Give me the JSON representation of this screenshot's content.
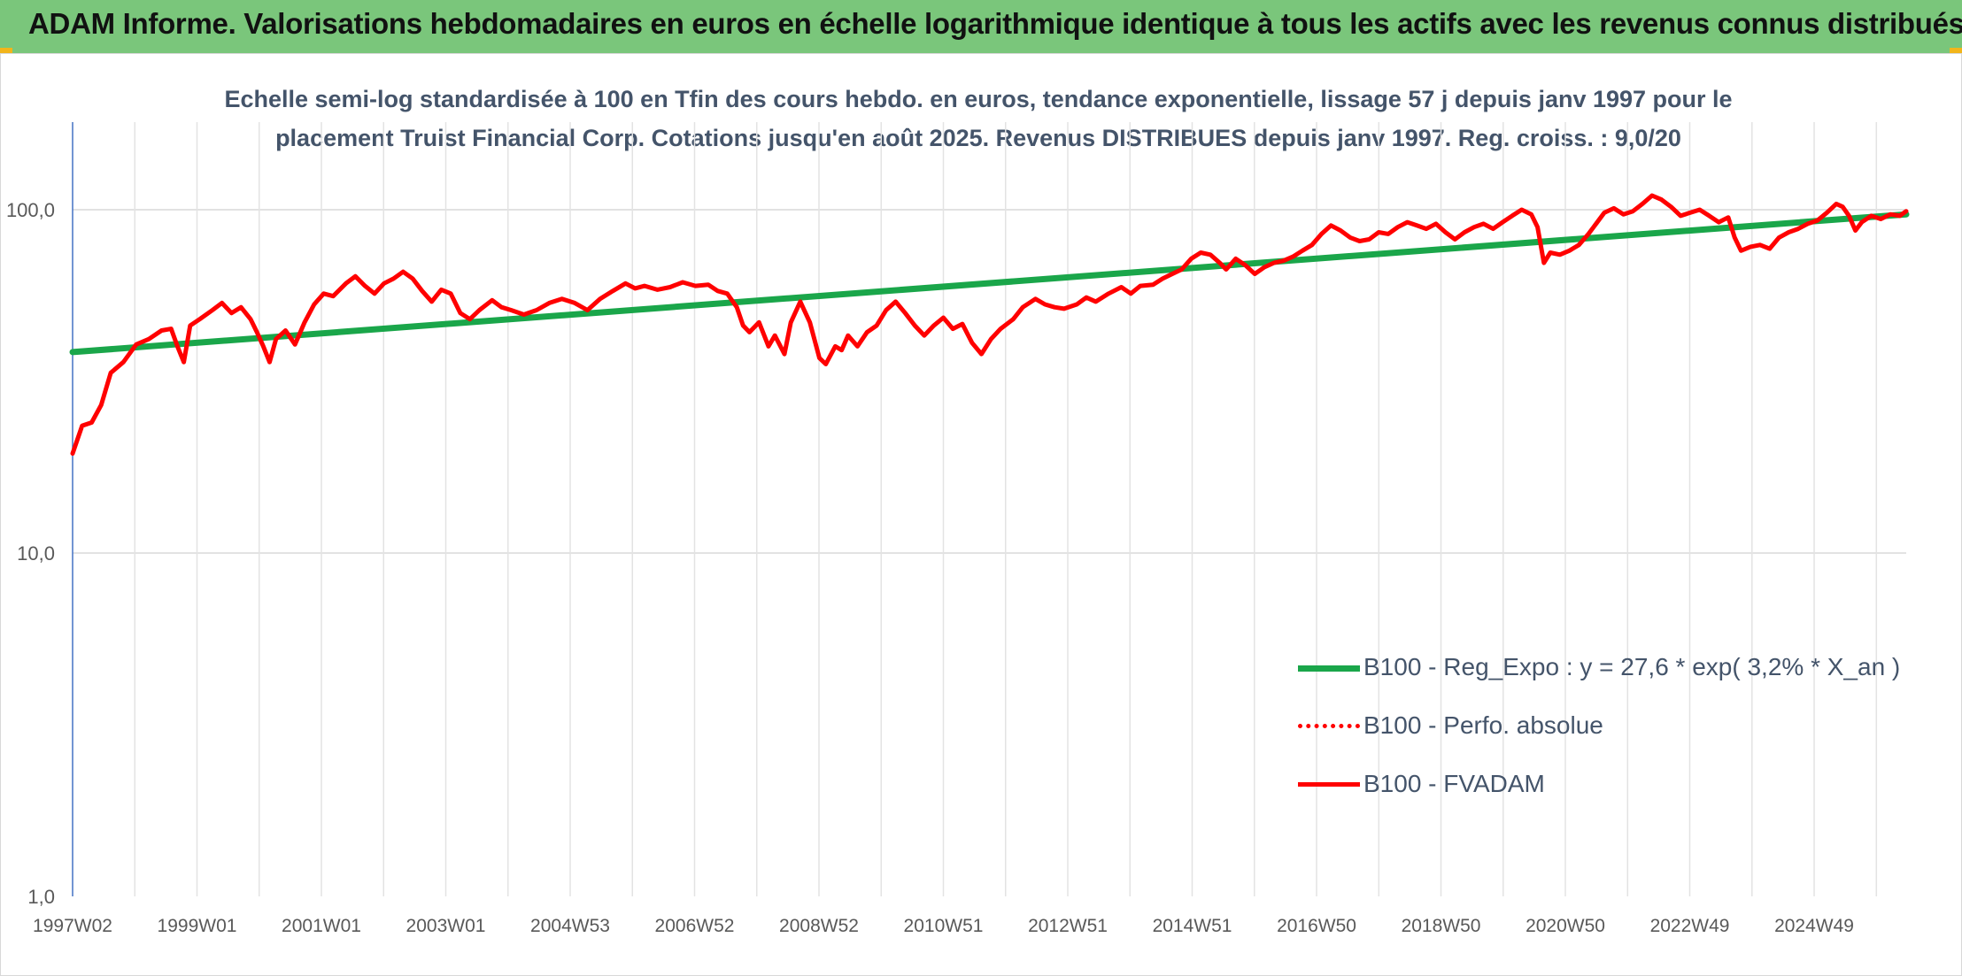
{
  "banner_title": "ADAM Informe. Valorisations hebdomadaires en euros en échelle logarithmique identique à tous les actifs avec les revenus connus distribués",
  "chart_data": {
    "type": "line",
    "title_line1": "Echelle semi-log standardisée à 100 en Tfin des cours hebdo. en euros, tendance exponentielle, lissage 57 j depuis janv 1997 pour le",
    "title_line2": "placement Truist Financial Corp. Cotations jusqu'en août 2025. Revenus DISTRIBUES depuis janv 1997. Reg. croiss. : 9,0/20",
    "y_scale": "log",
    "ylim": [
      1,
      180
    ],
    "y_ticks": [
      "1,0",
      "10,0",
      "100,0"
    ],
    "xlim": [
      1997.0,
      2025.85
    ],
    "x_tick_labels": [
      "1997W02",
      "1999W01",
      "2001W01",
      "2003W01",
      "2004W53",
      "2006W52",
      "2008W52",
      "2010W51",
      "2012W51",
      "2014W51",
      "2016W50",
      "2018W50",
      "2020W50",
      "2022W49",
      "2024W49"
    ],
    "legend_position": "bottom-right",
    "series": [
      {
        "name": "B100 - Reg_Expo : y = 27,6 * exp( 3,2% *  X_an )",
        "color": "#1aa64a",
        "style": "solid",
        "points": [
          [
            1997.0,
            38.5
          ],
          [
            2025.85,
            97.0
          ]
        ]
      },
      {
        "name": "B100 - Perfo. absolue",
        "color": "#ff0000",
        "style": "dotted",
        "points": []
      },
      {
        "name": "B100 - FVADAM",
        "color": "#ff0000",
        "style": "solid",
        "points": [
          [
            1997.0,
            19.5
          ],
          [
            1997.15,
            23.5
          ],
          [
            1997.3,
            24.0
          ],
          [
            1997.45,
            27.0
          ],
          [
            1997.6,
            33.5
          ],
          [
            1997.8,
            36.0
          ],
          [
            1998.0,
            40.5
          ],
          [
            1998.2,
            42.0
          ],
          [
            1998.4,
            44.5
          ],
          [
            1998.55,
            45.0
          ],
          [
            1998.65,
            40.0
          ],
          [
            1998.75,
            36.0
          ],
          [
            1998.85,
            46.0
          ],
          [
            1999.0,
            48.0
          ],
          [
            1999.2,
            51.0
          ],
          [
            1999.35,
            53.5
          ],
          [
            1999.5,
            50.0
          ],
          [
            1999.65,
            52.0
          ],
          [
            1999.8,
            48.0
          ],
          [
            1999.9,
            44.0
          ],
          [
            2000.0,
            40.0
          ],
          [
            2000.1,
            36.0
          ],
          [
            2000.2,
            42.0
          ],
          [
            2000.35,
            44.5
          ],
          [
            2000.5,
            40.5
          ],
          [
            2000.65,
            47.0
          ],
          [
            2000.8,
            53.0
          ],
          [
            2000.95,
            57.0
          ],
          [
            2001.1,
            56.0
          ],
          [
            2001.3,
            61.0
          ],
          [
            2001.45,
            64.0
          ],
          [
            2001.6,
            60.0
          ],
          [
            2001.75,
            57.0
          ],
          [
            2001.9,
            61.0
          ],
          [
            2002.05,
            63.0
          ],
          [
            2002.2,
            66.0
          ],
          [
            2002.35,
            63.0
          ],
          [
            2002.5,
            58.0
          ],
          [
            2002.65,
            54.0
          ],
          [
            2002.8,
            58.5
          ],
          [
            2002.95,
            57.0
          ],
          [
            2003.1,
            50.0
          ],
          [
            2003.25,
            48.0
          ],
          [
            2003.4,
            51.0
          ],
          [
            2003.6,
            54.5
          ],
          [
            2003.75,
            52.0
          ],
          [
            2003.9,
            51.0
          ],
          [
            2004.1,
            49.5
          ],
          [
            2004.3,
            51.0
          ],
          [
            2004.5,
            53.5
          ],
          [
            2004.7,
            55.0
          ],
          [
            2004.9,
            53.5
          ],
          [
            2005.1,
            51.0
          ],
          [
            2005.3,
            55.0
          ],
          [
            2005.5,
            58.0
          ],
          [
            2005.7,
            61.0
          ],
          [
            2005.85,
            59.0
          ],
          [
            2006.0,
            60.0
          ],
          [
            2006.2,
            58.5
          ],
          [
            2006.4,
            59.5
          ],
          [
            2006.6,
            61.5
          ],
          [
            2006.8,
            60.0
          ],
          [
            2007.0,
            60.5
          ],
          [
            2007.15,
            58.0
          ],
          [
            2007.3,
            57.0
          ],
          [
            2007.45,
            52.0
          ],
          [
            2007.55,
            46.0
          ],
          [
            2007.65,
            44.0
          ],
          [
            2007.8,
            47.0
          ],
          [
            2007.95,
            40.0
          ],
          [
            2008.05,
            43.0
          ],
          [
            2008.2,
            38.0
          ],
          [
            2008.3,
            47.0
          ],
          [
            2008.45,
            54.0
          ],
          [
            2008.6,
            47.0
          ],
          [
            2008.75,
            37.0
          ],
          [
            2008.85,
            35.5
          ],
          [
            2009.0,
            40.0
          ],
          [
            2009.1,
            39.0
          ],
          [
            2009.2,
            43.0
          ],
          [
            2009.35,
            40.0
          ],
          [
            2009.5,
            44.0
          ],
          [
            2009.65,
            46.0
          ],
          [
            2009.8,
            51.0
          ],
          [
            2009.95,
            54.0
          ],
          [
            2010.1,
            50.0
          ],
          [
            2010.25,
            46.0
          ],
          [
            2010.4,
            43.0
          ],
          [
            2010.55,
            46.0
          ],
          [
            2010.7,
            48.5
          ],
          [
            2010.85,
            45.0
          ],
          [
            2011.0,
            46.5
          ],
          [
            2011.15,
            41.0
          ],
          [
            2011.3,
            38.0
          ],
          [
            2011.45,
            42.0
          ],
          [
            2011.6,
            45.0
          ],
          [
            2011.8,
            48.0
          ],
          [
            2011.95,
            52.0
          ],
          [
            2012.15,
            55.0
          ],
          [
            2012.3,
            53.0
          ],
          [
            2012.45,
            52.0
          ],
          [
            2012.6,
            51.5
          ],
          [
            2012.8,
            53.0
          ],
          [
            2012.95,
            55.5
          ],
          [
            2013.1,
            54.0
          ],
          [
            2013.3,
            57.0
          ],
          [
            2013.5,
            59.5
          ],
          [
            2013.65,
            57.0
          ],
          [
            2013.8,
            60.0
          ],
          [
            2014.0,
            60.5
          ],
          [
            2014.15,
            63.0
          ],
          [
            2014.3,
            65.0
          ],
          [
            2014.45,
            67.0
          ],
          [
            2014.6,
            72.0
          ],
          [
            2014.75,
            75.0
          ],
          [
            2014.9,
            74.0
          ],
          [
            2015.05,
            70.0
          ],
          [
            2015.15,
            67.0
          ],
          [
            2015.3,
            72.0
          ],
          [
            2015.45,
            69.0
          ],
          [
            2015.6,
            65.0
          ],
          [
            2015.75,
            68.0
          ],
          [
            2015.9,
            70.0
          ],
          [
            2016.05,
            71.0
          ],
          [
            2016.2,
            73.0
          ],
          [
            2016.35,
            76.0
          ],
          [
            2016.5,
            79.0
          ],
          [
            2016.65,
            85.0
          ],
          [
            2016.8,
            90.0
          ],
          [
            2016.95,
            87.0
          ],
          [
            2017.1,
            83.0
          ],
          [
            2017.25,
            81.0
          ],
          [
            2017.4,
            82.0
          ],
          [
            2017.55,
            86.0
          ],
          [
            2017.7,
            85.0
          ],
          [
            2017.85,
            89.0
          ],
          [
            2018.0,
            92.0
          ],
          [
            2018.15,
            90.0
          ],
          [
            2018.3,
            88.0
          ],
          [
            2018.45,
            91.0
          ],
          [
            2018.6,
            86.0
          ],
          [
            2018.75,
            82.0
          ],
          [
            2018.9,
            86.0
          ],
          [
            2019.05,
            89.0
          ],
          [
            2019.2,
            91.0
          ],
          [
            2019.35,
            88.0
          ],
          [
            2019.5,
            92.0
          ],
          [
            2019.65,
            96.0
          ],
          [
            2019.8,
            100.0
          ],
          [
            2019.95,
            97.0
          ],
          [
            2020.05,
            89.0
          ],
          [
            2020.15,
            70.0
          ],
          [
            2020.25,
            75.0
          ],
          [
            2020.4,
            74.0
          ],
          [
            2020.55,
            76.0
          ],
          [
            2020.7,
            79.0
          ],
          [
            2020.85,
            85.0
          ],
          [
            2020.95,
            90.0
          ],
          [
            2021.1,
            98.0
          ],
          [
            2021.25,
            101.0
          ],
          [
            2021.4,
            97.0
          ],
          [
            2021.55,
            99.0
          ],
          [
            2021.7,
            104.0
          ],
          [
            2021.85,
            110.0
          ],
          [
            2022.0,
            107.0
          ],
          [
            2022.15,
            102.0
          ],
          [
            2022.3,
            96.0
          ],
          [
            2022.45,
            98.0
          ],
          [
            2022.6,
            100.0
          ],
          [
            2022.75,
            96.0
          ],
          [
            2022.9,
            92.0
          ],
          [
            2023.05,
            95.0
          ],
          [
            2023.15,
            83.0
          ],
          [
            2023.25,
            76.0
          ],
          [
            2023.4,
            78.0
          ],
          [
            2023.55,
            79.0
          ],
          [
            2023.7,
            77.0
          ],
          [
            2023.85,
            83.0
          ],
          [
            2024.0,
            86.0
          ],
          [
            2024.15,
            88.0
          ],
          [
            2024.3,
            91.0
          ],
          [
            2024.45,
            93.0
          ],
          [
            2024.6,
            98.0
          ],
          [
            2024.75,
            104.0
          ],
          [
            2024.85,
            102.0
          ],
          [
            2024.95,
            96.0
          ],
          [
            2025.05,
            87.0
          ],
          [
            2025.15,
            92.0
          ],
          [
            2025.3,
            96.0
          ],
          [
            2025.45,
            94.0
          ],
          [
            2025.6,
            97.0
          ],
          [
            2025.75,
            96.0
          ],
          [
            2025.85,
            99.0
          ]
        ]
      }
    ]
  }
}
